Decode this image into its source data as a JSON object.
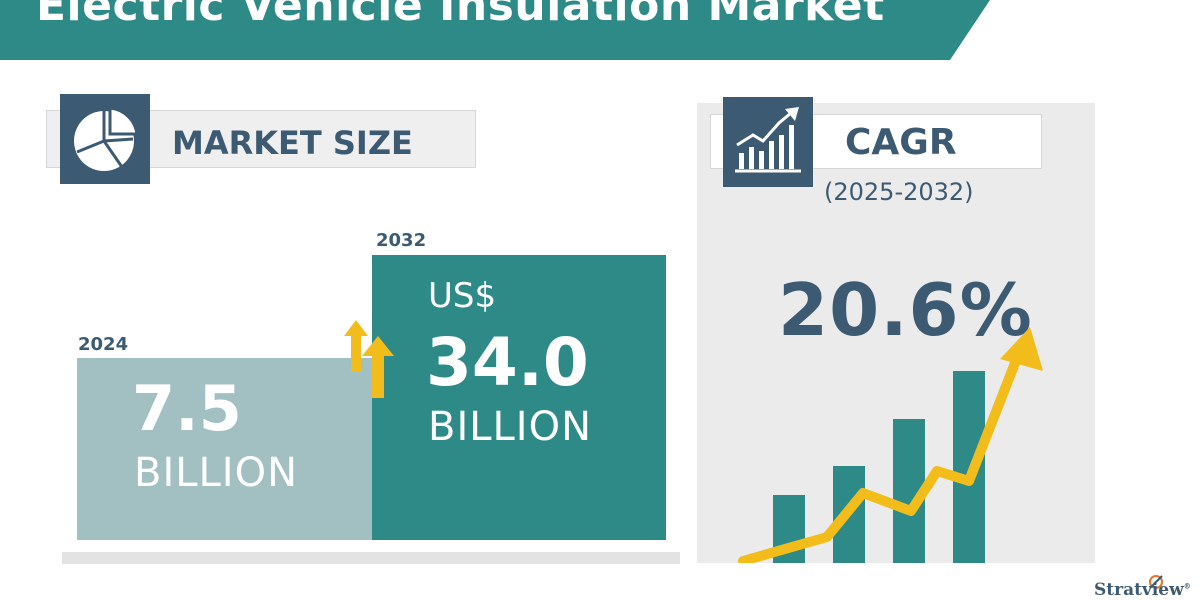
{
  "title": "Electric Vehicle Insulation Market",
  "market_size": {
    "label": "MARKET SIZE",
    "icon": "pie-chart-icon",
    "bars": [
      {
        "year": "2024",
        "currency": "",
        "value": "7.5",
        "unit": "BILLION"
      },
      {
        "year": "2032",
        "currency": "US$",
        "value": "34.0",
        "unit": "BILLION"
      }
    ],
    "growth_icon": "double-up-arrow-icon"
  },
  "cagr": {
    "label": "CAGR",
    "icon": "growth-chart-icon",
    "period": "(2025-2032)",
    "value": "20.6%"
  },
  "chart_data": {
    "type": "bar",
    "title": "Electric Vehicle Insulation Market",
    "categories": [
      "2024",
      "2032"
    ],
    "values": [
      7.5,
      34.0
    ],
    "unit": "US$ BILLION",
    "cagr": "20.6%",
    "cagr_period": "(2025-2032)",
    "xlabel": "",
    "ylabel": ""
  },
  "brand": {
    "logo_text": "Stratview",
    "mark": "®"
  },
  "colors": {
    "navy": "#3d5a73",
    "teal": "#2e8a87",
    "light_teal": "#a2bfc1",
    "gold": "#f2bc1b",
    "panel_gray": "#ebebeb"
  }
}
